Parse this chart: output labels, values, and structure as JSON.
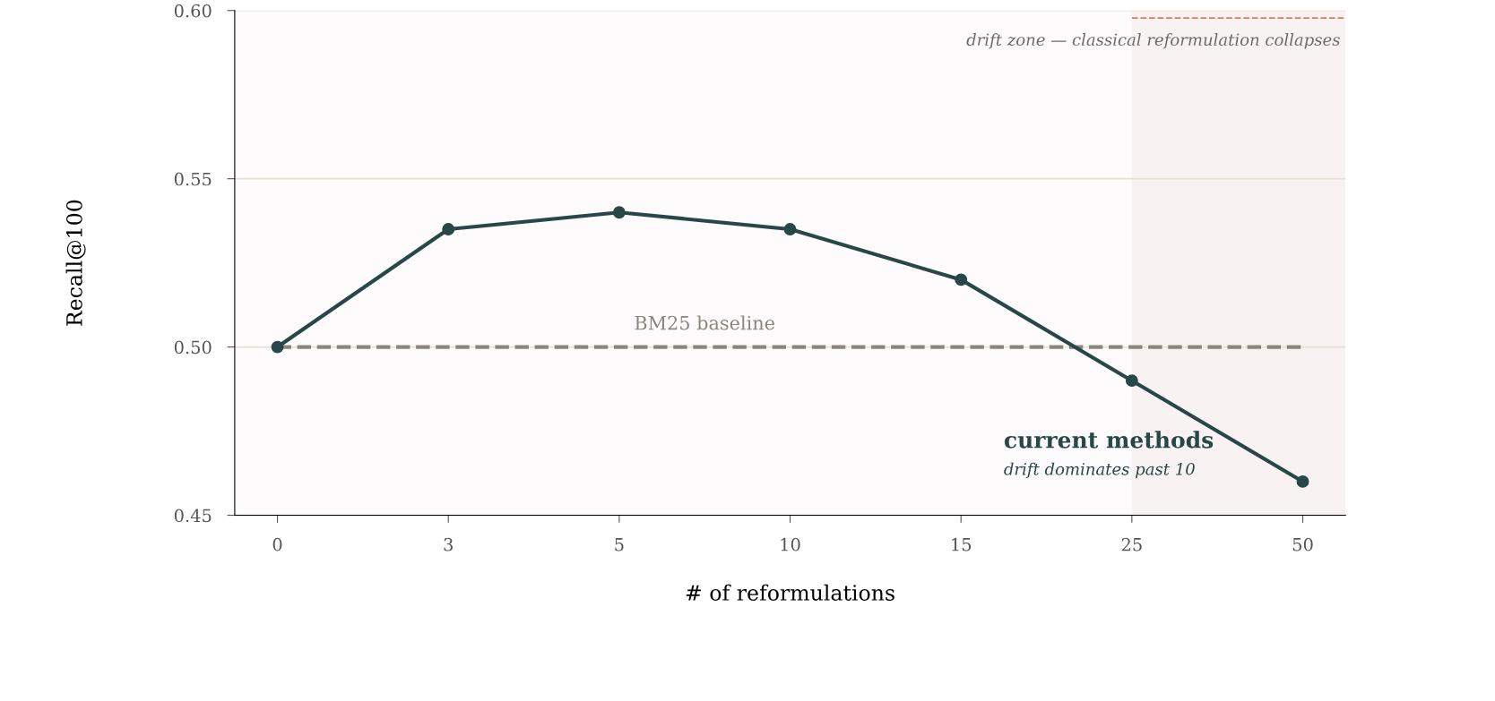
{
  "chart_data": {
    "type": "line",
    "xlabel": "# of reformulations",
    "ylabel": "Recall@100",
    "categories": [
      "0",
      "3",
      "5",
      "10",
      "15",
      "25",
      "50"
    ],
    "series": [
      {
        "color": "#284848",
        "values": [
          0.5,
          0.535,
          0.54,
          0.535,
          0.52,
          0.49,
          0.46
        ]
      }
    ],
    "ylim": [
      0.45,
      0.6
    ],
    "yticks": [
      {
        "value": 0.45,
        "label": "0.45"
      },
      {
        "value": 0.5,
        "label": "0.50"
      },
      {
        "value": 0.55,
        "label": "0.55"
      },
      {
        "value": 0.6,
        "label": "0.60"
      }
    ],
    "grid": "y",
    "marker": "circle",
    "line_style": "solid",
    "ref_lines": [
      {
        "axis": "y",
        "value": 0.5,
        "label": "BM25 baseline",
        "color": "#8a857e",
        "line_style": "dashed"
      }
    ],
    "bands": [
      {
        "axis": "x",
        "from": "25",
        "to": "50",
        "label": "drift zone — classical reformulation collapses",
        "color": "#f8f3f2"
      }
    ],
    "annotations": [
      "current methods",
      "drift dominates past 10"
    ]
  }
}
